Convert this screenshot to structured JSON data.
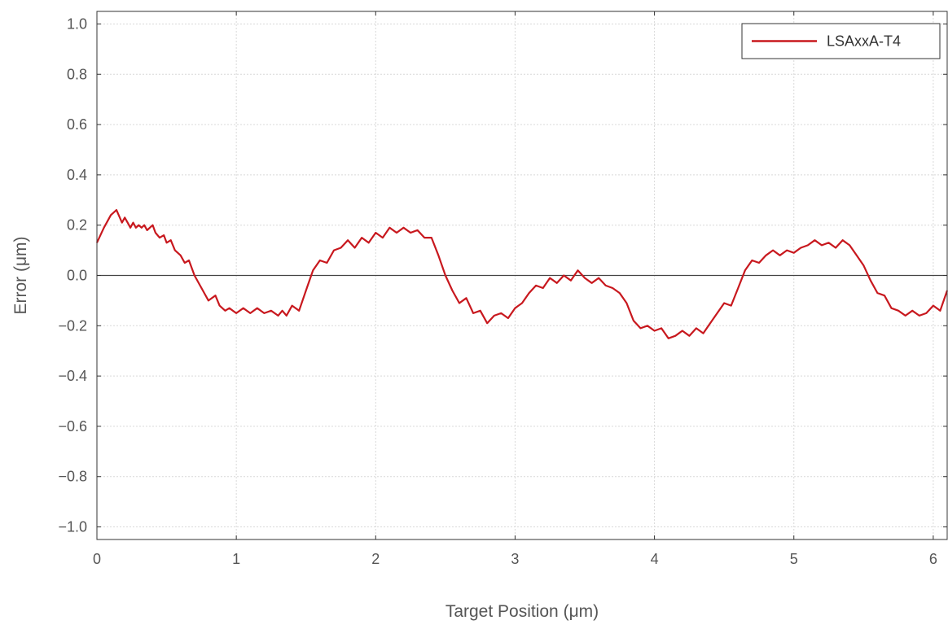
{
  "chart_data": {
    "type": "line",
    "xlabel": "Target Position (μm)",
    "ylabel": "Error (μm)",
    "xlim": [
      0,
      6.1
    ],
    "ylim": [
      -1.05,
      1.05
    ],
    "xticks": [
      0,
      1,
      2,
      3,
      4,
      5,
      6
    ],
    "xtick_labels": [
      "0",
      "1",
      "2",
      "3",
      "4",
      "5",
      "6"
    ],
    "yticks": [
      1.0,
      0.8,
      0.6,
      0.4,
      0.2,
      0.0,
      -0.2,
      -0.4,
      -0.6,
      -0.8,
      -1.0
    ],
    "ytick_labels": [
      "1.0",
      "0.8",
      "0.6",
      "0.4",
      "0.2",
      "0.0",
      "−0.2",
      "−0.4",
      "−0.6",
      "−0.8",
      "−1.0"
    ],
    "grid": true,
    "zero_line": true,
    "legend_position": "top-right",
    "series": [
      {
        "name": "LSAxxA-T4",
        "color": "#c8181e",
        "x": [
          0,
          0.05,
          0.1,
          0.14,
          0.18,
          0.2,
          0.22,
          0.24,
          0.26,
          0.28,
          0.3,
          0.32,
          0.34,
          0.36,
          0.38,
          0.4,
          0.42,
          0.45,
          0.48,
          0.5,
          0.53,
          0.56,
          0.6,
          0.63,
          0.66,
          0.7,
          0.75,
          0.8,
          0.85,
          0.88,
          0.92,
          0.95,
          1.0,
          1.05,
          1.1,
          1.15,
          1.2,
          1.25,
          1.3,
          1.33,
          1.36,
          1.4,
          1.45,
          1.5,
          1.55,
          1.6,
          1.65,
          1.7,
          1.75,
          1.8,
          1.85,
          1.9,
          1.95,
          2.0,
          2.05,
          2.1,
          2.15,
          2.2,
          2.25,
          2.3,
          2.35,
          2.4,
          2.45,
          2.5,
          2.55,
          2.6,
          2.65,
          2.7,
          2.75,
          2.8,
          2.85,
          2.9,
          2.95,
          3.0,
          3.05,
          3.1,
          3.15,
          3.2,
          3.25,
          3.3,
          3.35,
          3.4,
          3.45,
          3.5,
          3.55,
          3.6,
          3.65,
          3.7,
          3.75,
          3.8,
          3.85,
          3.9,
          3.95,
          4.0,
          4.05,
          4.1,
          4.15,
          4.2,
          4.25,
          4.3,
          4.35,
          4.4,
          4.45,
          4.5,
          4.55,
          4.6,
          4.65,
          4.7,
          4.75,
          4.8,
          4.85,
          4.9,
          4.95,
          5.0,
          5.05,
          5.1,
          5.15,
          5.2,
          5.25,
          5.3,
          5.35,
          5.4,
          5.45,
          5.5,
          5.55,
          5.6,
          5.65,
          5.7,
          5.75,
          5.8,
          5.85,
          5.9,
          5.95,
          6.0,
          6.05,
          6.1
        ],
        "y": [
          0.13,
          0.19,
          0.24,
          0.26,
          0.21,
          0.23,
          0.21,
          0.19,
          0.21,
          0.19,
          0.2,
          0.19,
          0.2,
          0.18,
          0.19,
          0.2,
          0.17,
          0.15,
          0.16,
          0.13,
          0.14,
          0.1,
          0.08,
          0.05,
          0.06,
          0.0,
          -0.05,
          -0.1,
          -0.08,
          -0.12,
          -0.14,
          -0.13,
          -0.15,
          -0.13,
          -0.15,
          -0.13,
          -0.15,
          -0.14,
          -0.16,
          -0.14,
          -0.16,
          -0.12,
          -0.14,
          -0.06,
          0.02,
          0.06,
          0.05,
          0.1,
          0.11,
          0.14,
          0.11,
          0.15,
          0.13,
          0.17,
          0.15,
          0.19,
          0.17,
          0.19,
          0.17,
          0.18,
          0.15,
          0.15,
          0.08,
          0.0,
          -0.06,
          -0.11,
          -0.09,
          -0.15,
          -0.14,
          -0.19,
          -0.16,
          -0.15,
          -0.17,
          -0.13,
          -0.11,
          -0.07,
          -0.04,
          -0.05,
          -0.01,
          -0.03,
          0.0,
          -0.02,
          0.02,
          -0.01,
          -0.03,
          -0.01,
          -0.04,
          -0.05,
          -0.07,
          -0.11,
          -0.18,
          -0.21,
          -0.2,
          -0.22,
          -0.21,
          -0.25,
          -0.24,
          -0.22,
          -0.24,
          -0.21,
          -0.23,
          -0.19,
          -0.15,
          -0.11,
          -0.12,
          -0.05,
          0.02,
          0.06,
          0.05,
          0.08,
          0.1,
          0.08,
          0.1,
          0.09,
          0.11,
          0.12,
          0.14,
          0.12,
          0.13,
          0.11,
          0.14,
          0.12,
          0.08,
          0.04,
          -0.02,
          -0.07,
          -0.08,
          -0.13,
          -0.14,
          -0.16,
          -0.14,
          -0.16,
          -0.15,
          -0.12,
          -0.14,
          -0.06
        ]
      }
    ]
  }
}
